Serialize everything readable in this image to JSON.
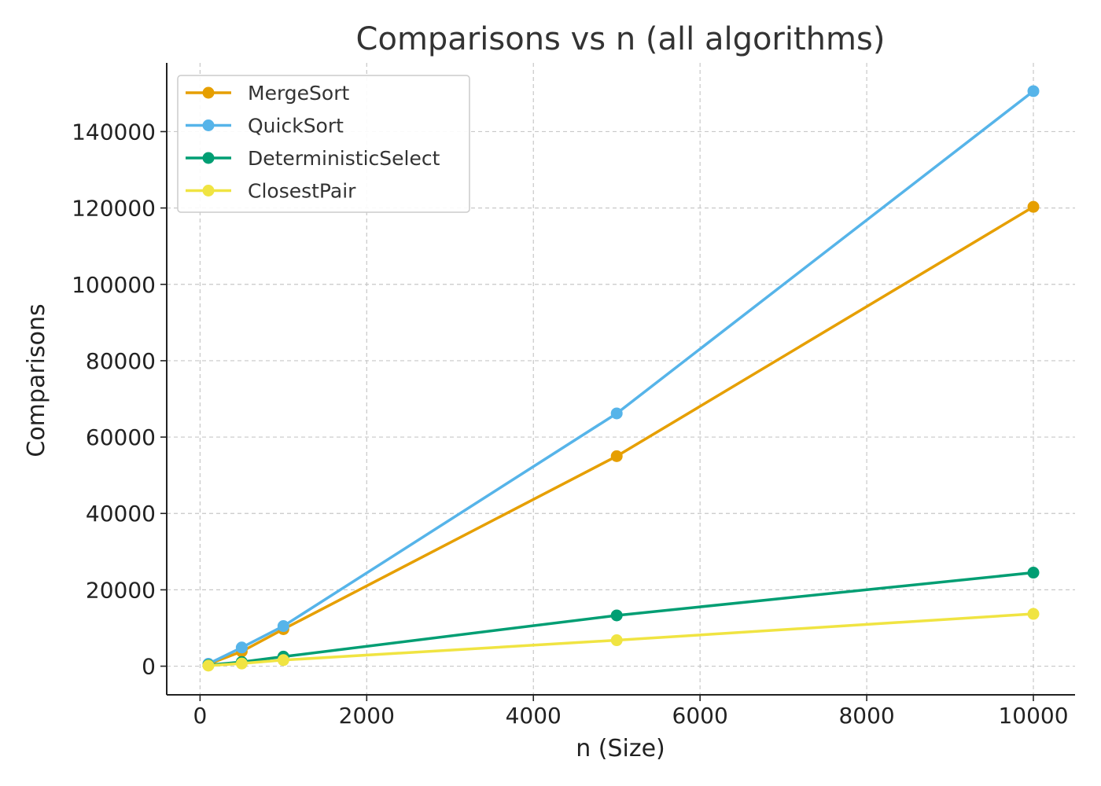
{
  "chart_data": {
    "type": "line",
    "title": "Comparisons vs n (all algorithms)",
    "xlabel": "n (Size)",
    "ylabel": "Comparisons",
    "xlim": [
      -400,
      10500
    ],
    "ylim": [
      -7500,
      158000
    ],
    "xticks": [
      0,
      2000,
      4000,
      6000,
      8000,
      10000
    ],
    "yticks": [
      0,
      20000,
      40000,
      60000,
      80000,
      100000,
      120000,
      140000
    ],
    "grid": true,
    "legend_position": "top-left",
    "x": [
      100,
      500,
      1000,
      5000,
      10000
    ],
    "series": [
      {
        "name": "MergeSort",
        "color": "#E69F00",
        "values": [
          540,
          3850,
          9700,
          55000,
          120300
        ]
      },
      {
        "name": "QuickSort",
        "color": "#56B4E9",
        "values": [
          620,
          4900,
          10500,
          66200,
          150600
        ]
      },
      {
        "name": "DeterministicSelect",
        "color": "#009E73",
        "values": [
          300,
          1100,
          2500,
          13300,
          24500
        ]
      },
      {
        "name": "ClosestPair",
        "color": "#F0E442",
        "values": [
          150,
          700,
          1600,
          6800,
          13700
        ]
      }
    ]
  }
}
